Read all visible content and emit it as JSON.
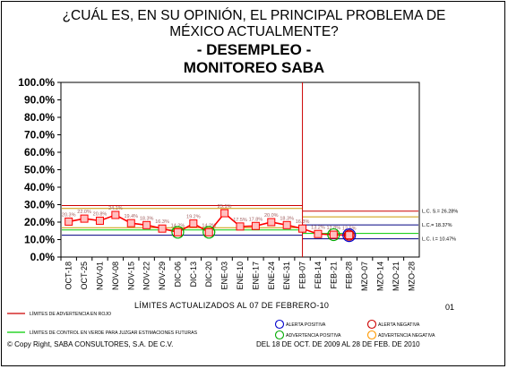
{
  "title_lines": [
    "¿CUÁL ES, EN SU OPINIÓN, EL PRINCIPAL PROBLEMA DE",
    "MÉXICO ACTUALMENTE?"
  ],
  "subtitle_lines": [
    "- DESEMPLEO -",
    "MONITOREO SABA"
  ],
  "limits_caption": "LÍMITES ACTUALIZADOS AL 07 DE FEBRERO-10",
  "page_number": "01",
  "copyright": "© Copy Right, SABA CONSULTORES, S.A. DE C.V.",
  "period": "DEL 18 DE OCT. DE 2009 AL 28 DE FEB. DE 2010",
  "legend": {
    "red_line": "LÍMITES DE ADVERTENCIA EN ROJO",
    "green_line": "LÍMITES DE CONTROL EN VERDE PARA JUZGAR ESTIMACIONES FUTURAS",
    "positive_alert": "ALERTA POSITIVA",
    "negative_alert": "ALERTA NEGATIVA",
    "positive_warning": "ADVERTENCIA POSITIVA",
    "negative_warning": "ADVERTENCIA NEGATIVA"
  },
  "colors": {
    "series": "#ff0000",
    "marker_fill": "#ffc0c0",
    "red_limit": "#cc0000",
    "green_limit": "#00cc00",
    "orange_limit": "#cc9900",
    "navy_limit": "#000080",
    "alert_positive": "#0000cc",
    "alert_negative": "#cc0000",
    "warning_positive": "#00aa00",
    "warning_negative": "#ff9900"
  },
  "chart_data": {
    "type": "line",
    "categories": [
      "OCT-18",
      "OCT-25",
      "NOV-01",
      "NOV-08",
      "NOV-15",
      "NOV-22",
      "NOV-29",
      "DIC-06",
      "DIC-13",
      "DIC-20",
      "ENE-03",
      "ENE-10",
      "ENE-17",
      "ENE-24",
      "ENE-31",
      "FEB-07",
      "FEB-14",
      "FEB-21",
      "FEB-28",
      "MZO-07",
      "MZO-14",
      "MZO-21",
      "MZO-28"
    ],
    "series": [
      {
        "values": [
          20.3,
          22.0,
          20.8,
          24.1,
          19.4,
          18.3,
          16.3,
          14.2,
          19.2,
          14.2,
          25.1,
          17.5,
          17.8,
          20.0,
          18.3,
          16.3,
          13.2,
          12.8,
          12.5,
          null,
          null,
          null,
          null
        ],
        "labels": [
          "20.3%",
          "22.0%",
          "20.8%",
          "24.1%",
          "19.4%",
          "18.3%",
          "16.3%",
          "14.2%",
          "19.2%",
          "14.2%",
          "25.1%",
          "17.5%",
          "17.8%",
          "20.0%",
          "18.3%",
          "16.3%",
          "13.2%",
          "12.8%",
          "12.5%",
          "",
          "",
          "",
          ""
        ]
      }
    ],
    "markers": [
      {
        "category": "DIC-06",
        "type": "positive_warning"
      },
      {
        "category": "DIC-20",
        "type": "positive_warning"
      },
      {
        "category": "FEB-21",
        "type": "positive_warning"
      },
      {
        "category": "FEB-28",
        "type": "positive_alert"
      },
      {
        "category": "FEB-28",
        "type": "negative_alert"
      }
    ],
    "reference_lines": [
      {
        "name": "red_upper",
        "y": 29.5,
        "from": "OCT-18",
        "to": "FEB-07",
        "color": "red"
      },
      {
        "name": "orange_upper",
        "y": 27.8,
        "from": "OCT-18",
        "to": "FEB-07",
        "color": "orange"
      },
      {
        "name": "orange_lower",
        "y": 16.8,
        "from": "OCT-18",
        "to": "FEB-07",
        "color": "orange"
      },
      {
        "name": "green_lower",
        "y": 15.5,
        "from": "OCT-18",
        "to": "FEB-07",
        "color": "green"
      },
      {
        "name": "navy_lower",
        "y": 12.5,
        "from": "OCT-18",
        "to": "FEB-07",
        "color": "navy"
      },
      {
        "name": "lcs_red",
        "y": 26.3,
        "from": "FEB-07",
        "to": "MZO-28",
        "color": "red"
      },
      {
        "name": "lcs_orange",
        "y": 23.0,
        "from": "FEB-07",
        "to": "MZO-28",
        "color": "orange"
      },
      {
        "name": "lc",
        "y": 18.37,
        "from": "FEB-07",
        "to": "MZO-28",
        "color": "navy"
      },
      {
        "name": "lci_green",
        "y": 13.5,
        "from": "FEB-07",
        "to": "MZO-28",
        "color": "green"
      },
      {
        "name": "lci_navy",
        "y": 10.47,
        "from": "FEB-07",
        "to": "MZO-28",
        "color": "navy"
      }
    ],
    "limit_labels": [
      {
        "text": "L.C. S.= 26.28%",
        "y": 26.3
      },
      {
        "text": "L.C.= 18.37%",
        "y": 18.37
      },
      {
        "text": "L.C. I.= 10.47%",
        "y": 10.47
      }
    ],
    "y_ticks": [
      "0.0%",
      "10.0%",
      "20.0%",
      "30.0%",
      "40.0%",
      "50.0%",
      "60.0%",
      "70.0%",
      "80.0%",
      "90.0%",
      "100.0%"
    ],
    "ylim": [
      0,
      100
    ],
    "divider_at": "FEB-07"
  }
}
